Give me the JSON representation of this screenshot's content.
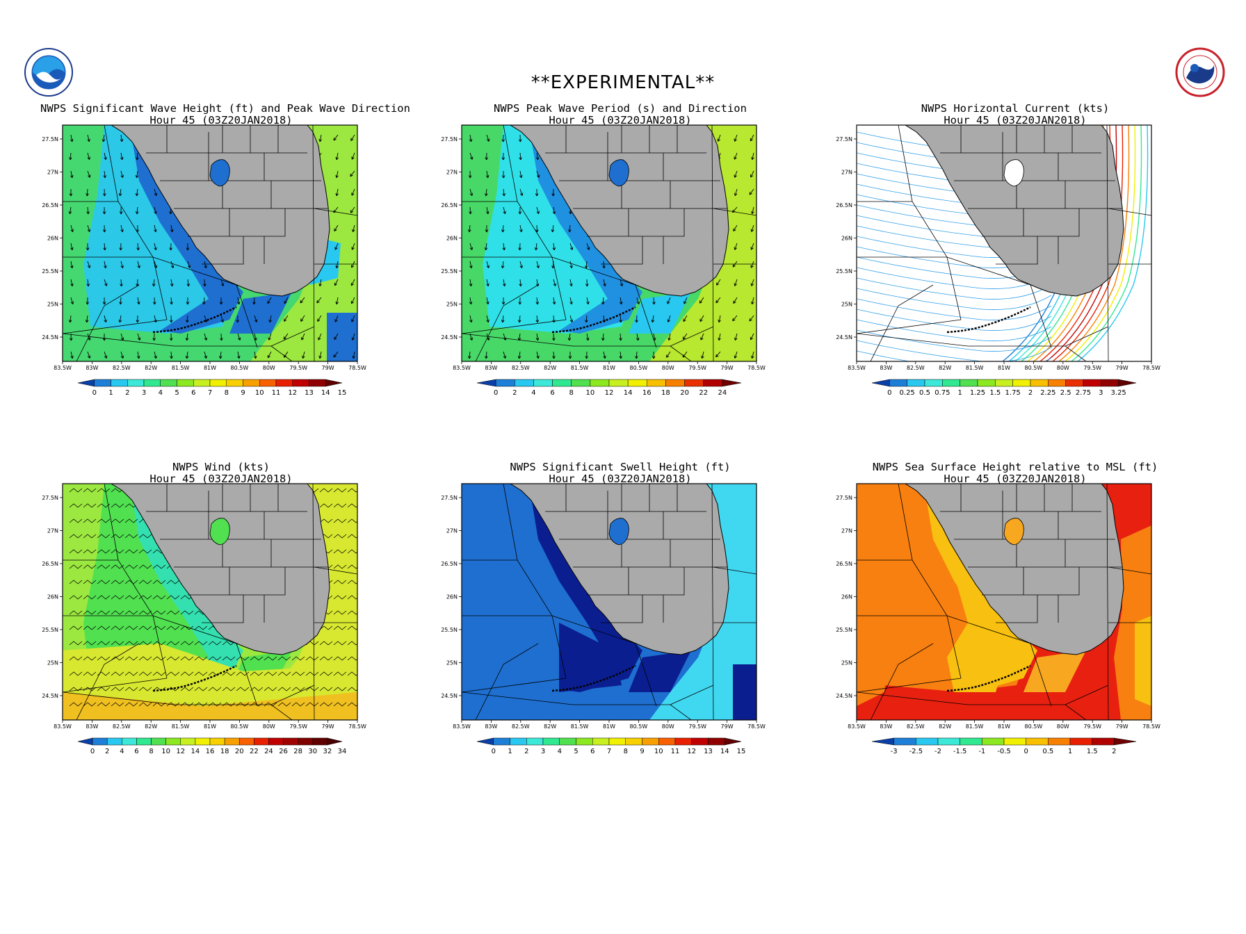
{
  "banner": "**EXPERIMENTAL**",
  "logos": {
    "left": "noaa-logo",
    "right": "nws-logo"
  },
  "colors": {
    "land": "#aaaaaa",
    "frame": "#000000"
  },
  "axes": {
    "lat_labels": [
      "27.5N",
      "27N",
      "26.5N",
      "26N",
      "25.5N",
      "25N",
      "24.5N"
    ],
    "lon_labels": [
      "83.5W",
      "83W",
      "82.5W",
      "82W",
      "81.5W",
      "81W",
      "80.5W",
      "80W",
      "79.5W",
      "79W",
      "78.5W"
    ]
  },
  "panels": [
    {
      "title": "NWPS Significant Wave Height (ft) and Peak Wave Direction",
      "subtitle": "Hour 45 (03Z20JAN2018)",
      "vector_style": "arrows",
      "colorbar": {
        "labels": [
          "0",
          "1",
          "2",
          "3",
          "4",
          "5",
          "6",
          "7",
          "8",
          "9",
          "10",
          "11",
          "12",
          "13",
          "14",
          "15"
        ],
        "colors": [
          "#0a3fa8",
          "#1e7fd8",
          "#28c8f0",
          "#3ce8d8",
          "#30e890",
          "#50e050",
          "#8ce820",
          "#c8f020",
          "#f0f000",
          "#f8d000",
          "#f8a000",
          "#f86000",
          "#e82000",
          "#c00000",
          "#900000",
          "#600000"
        ]
      },
      "field": {
        "open": "#46d870",
        "offshore": "#9ce840",
        "nearshore": "#2cc8e8",
        "inner": "#1e6fd0",
        "bay": "#1e6fd0"
      }
    },
    {
      "title": "NWPS Peak Wave Period (s) and Direction",
      "subtitle": "Hour 45 (03Z20JAN2018)",
      "vector_style": "arrows",
      "colorbar": {
        "labels": [
          "0",
          "2",
          "4",
          "6",
          "8",
          "10",
          "12",
          "14",
          "16",
          "18",
          "20",
          "22",
          "24"
        ],
        "colors": [
          "#0a3fa8",
          "#1e7fd8",
          "#28c8f0",
          "#3ce8d8",
          "#30e890",
          "#50e050",
          "#8ce820",
          "#c8f020",
          "#f0f000",
          "#f8c000",
          "#f88000",
          "#e83000",
          "#b00000",
          "#700000"
        ]
      },
      "field": {
        "open": "#48d868",
        "offshore": "#b8e830",
        "nearshore": "#30e0e8",
        "inner": "#2090e0",
        "bay": "#28c8f0"
      }
    },
    {
      "title": "NWPS Horizontal Current (kts)",
      "subtitle": "Hour 45 (03Z20JAN2018)",
      "vector_style": "streamlines",
      "colorbar": {
        "labels": [
          "0",
          "0.25",
          "0.5",
          "0.75",
          "1",
          "1.25",
          "1.5",
          "1.75",
          "2",
          "2.25",
          "2.5",
          "2.75",
          "3",
          "3.25"
        ],
        "colors": [
          "#0a3fa8",
          "#1e7fd8",
          "#28c8f0",
          "#3ce8d8",
          "#30e890",
          "#50e050",
          "#8ce820",
          "#c8f020",
          "#f0f000",
          "#f8c000",
          "#f88000",
          "#e83000",
          "#c00000",
          "#900000",
          "#600000"
        ]
      },
      "field": {
        "open": "#ffffff",
        "offshore": "#ffffff",
        "nearshore": "#ffffff",
        "inner": "#ffffff",
        "bay": "#ffffff"
      }
    },
    {
      "title": "NWPS Wind (kts)",
      "subtitle": "Hour 45 (03Z20JAN2018)",
      "vector_style": "barbs",
      "colorbar": {
        "labels": [
          "0",
          "2",
          "4",
          "6",
          "8",
          "10",
          "12",
          "14",
          "16",
          "18",
          "20",
          "22",
          "24",
          "26",
          "28",
          "30",
          "32",
          "34"
        ],
        "colors": [
          "#0a3fa8",
          "#1e7fd8",
          "#28c8f0",
          "#3ce8d8",
          "#30e890",
          "#50e050",
          "#8ce820",
          "#c8f020",
          "#f0f000",
          "#f8d000",
          "#f8a000",
          "#f86000",
          "#e82000",
          "#c00000",
          "#a00000",
          "#800000",
          "#600000",
          "#480000"
        ]
      },
      "field": {
        "open": "#9ce840",
        "offshore": "#d8e830",
        "nearshore": "#50e050",
        "inner": "#34e0b0",
        "bay": "#50e050"
      }
    },
    {
      "title": "NWPS Significant Swell Height (ft)",
      "subtitle": "Hour 45 (03Z20JAN2018)",
      "vector_style": "none",
      "colorbar": {
        "labels": [
          "0",
          "1",
          "2",
          "3",
          "4",
          "5",
          "6",
          "7",
          "8",
          "9",
          "10",
          "11",
          "12",
          "13",
          "14",
          "15"
        ],
        "colors": [
          "#0a3fa8",
          "#1e7fd8",
          "#28c8f0",
          "#3ce8d8",
          "#30e890",
          "#50e050",
          "#8ce820",
          "#c8f020",
          "#f0f000",
          "#f8d000",
          "#f8a000",
          "#f86000",
          "#e82000",
          "#c00000",
          "#900000",
          "#600000"
        ]
      },
      "field": {
        "open": "#1e6fd0",
        "offshore": "#40d8f0",
        "nearshore": "#1e6fd0",
        "inner": "#0a1e90",
        "bay": "#0a1e90"
      }
    },
    {
      "title": "NWPS Sea Surface Height relative to MSL (ft)",
      "subtitle": "Hour 45 (03Z20JAN2018)",
      "vector_style": "none",
      "colorbar": {
        "labels": [
          "-3",
          "-2.5",
          "-2",
          "-1.5",
          "-1",
          "-0.5",
          "0",
          "0.5",
          "1",
          "1.5",
          "2"
        ],
        "colors": [
          "#0a3fa8",
          "#1e7fd8",
          "#28c8f0",
          "#3ce8d8",
          "#30e890",
          "#8ce820",
          "#f0f000",
          "#f8c000",
          "#f88000",
          "#e82000",
          "#b00000",
          "#700000"
        ]
      },
      "field": {
        "open": "#e82010",
        "offshore": "#e82010",
        "nearshore": "#f88010",
        "inner": "#f8c010",
        "bay": "#f8a820"
      }
    }
  ]
}
